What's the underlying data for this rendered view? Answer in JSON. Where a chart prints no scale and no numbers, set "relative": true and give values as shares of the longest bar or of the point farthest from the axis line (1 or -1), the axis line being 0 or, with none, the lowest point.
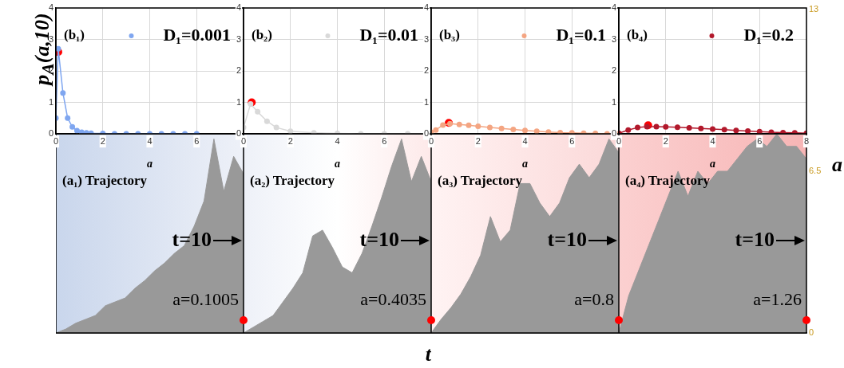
{
  "chart_data": [
    {
      "type": "line",
      "xlim": [
        0,
        8
      ],
      "ylim": [
        0,
        4
      ],
      "xticks": [
        0,
        2,
        4,
        6
      ],
      "yticks": [
        0,
        1,
        2,
        3,
        4
      ],
      "xlabel": "a",
      "ylabel": "p$_{A}$(a,10)",
      "grid": true,
      "legend": "top right",
      "marker": "circle",
      "annotations": [
        "(b₁)"
      ],
      "series": [
        {
          "name": "D₁=0.001",
          "color": "#7fa6f0",
          "x": [
            0,
            0.1,
            0.3,
            0.5,
            0.7,
            0.9,
            1.1,
            1.3,
            1.5,
            2,
            2.5,
            3,
            3.5,
            4,
            4.5,
            5,
            5.5,
            6
          ],
          "values": [
            0.5,
            2.7,
            1.3,
            0.5,
            0.22,
            0.1,
            0.05,
            0.03,
            0.02,
            0.01,
            0,
            0,
            0,
            0,
            0,
            0,
            0,
            0
          ]
        },
        {
          "type": "scatter",
          "color": "#ff0000",
          "x": [
            0.1
          ],
          "values": [
            2.6
          ]
        }
      ]
    },
    {
      "type": "line",
      "xlim": [
        0,
        8
      ],
      "ylim": [
        0,
        4
      ],
      "xticks": [
        0,
        2,
        4,
        6
      ],
      "yticks": [
        0,
        1,
        2,
        3,
        4
      ],
      "xlabel": "a",
      "grid": true,
      "legend": "top right",
      "marker": "circle",
      "annotations": [
        "(b₂)"
      ],
      "series": [
        {
          "name": "D₁=0.01",
          "color": "#d9d9d9",
          "x": [
            0,
            0.3,
            0.6,
            1,
            1.4,
            2,
            3,
            4,
            5,
            6,
            7,
            8
          ],
          "values": [
            0.2,
            0.95,
            0.7,
            0.4,
            0.2,
            0.08,
            0.03,
            0.01,
            0,
            0,
            0,
            0
          ]
        },
        {
          "type": "scatter",
          "color": "#ff0000",
          "x": [
            0.35
          ],
          "values": [
            1
          ]
        }
      ]
    },
    {
      "type": "line",
      "xlim": [
        0,
        8
      ],
      "ylim": [
        0,
        4
      ],
      "xticks": [
        0,
        2,
        4,
        6
      ],
      "yticks": [
        0,
        1,
        2,
        3,
        4
      ],
      "xlabel": "a",
      "grid": true,
      "legend": "top right",
      "marker": "circle",
      "annotations": [
        "(b₃)"
      ],
      "series": [
        {
          "name": "D₁=0.1",
          "color": "#f4a582",
          "x": [
            0,
            0.2,
            0.5,
            0.8,
            1.2,
            1.6,
            2,
            2.5,
            3,
            3.5,
            4,
            4.5,
            5,
            5.5,
            6,
            6.5,
            7,
            7.5,
            8
          ],
          "values": [
            0.05,
            0.12,
            0.28,
            0.32,
            0.3,
            0.27,
            0.24,
            0.2,
            0.17,
            0.14,
            0.11,
            0.08,
            0.06,
            0.04,
            0.03,
            0.02,
            0.01,
            0,
            0
          ]
        },
        {
          "type": "scatter",
          "color": "#ff0000",
          "x": [
            0.75
          ],
          "values": [
            0.35
          ]
        }
      ]
    },
    {
      "type": "line",
      "xlim": [
        0,
        8
      ],
      "ylim": [
        0,
        4
      ],
      "xticks": [
        0,
        2,
        4,
        6,
        8
      ],
      "yticks": [
        0,
        1,
        2,
        3,
        4
      ],
      "xlabel": "a",
      "grid": true,
      "legend": "top right",
      "marker": "circle",
      "annotations": [
        "(b₄)"
      ],
      "series": [
        {
          "name": "D₁=0.2",
          "color": "#b2182b",
          "x": [
            0,
            0.4,
            0.8,
            1.2,
            1.6,
            2,
            2.5,
            3,
            3.5,
            4,
            4.5,
            5,
            5.5,
            6,
            6.5,
            7,
            7.5,
            8
          ],
          "values": [
            0.02,
            0.12,
            0.2,
            0.23,
            0.23,
            0.22,
            0.21,
            0.19,
            0.17,
            0.15,
            0.13,
            0.11,
            0.09,
            0.07,
            0.05,
            0.04,
            0.03,
            0.02
          ]
        },
        {
          "type": "scatter",
          "color": "#ff0000",
          "x": [
            1.25
          ],
          "values": [
            0.27
          ]
        }
      ]
    },
    {
      "type": "area",
      "categories": [
        null,
        null,
        null,
        null,
        null,
        null,
        null,
        null,
        null,
        null,
        null,
        null,
        null,
        null,
        null,
        null,
        null,
        null,
        null,
        null
      ],
      "relative": true,
      "annotations": [
        "(a₁) Trajectory",
        "t=10",
        "a=0.1005"
      ],
      "series": [
        {
          "color": "#999999",
          "values": [
            0,
            0.02,
            0.05,
            0.07,
            0.09,
            0.14,
            0.16,
            0.18,
            0.23,
            0.27,
            0.32,
            0.36,
            0.41,
            0.45,
            0.55,
            0.68,
            1,
            0.73,
            0.91,
            0.82
          ]
        }
      ]
    },
    {
      "type": "area",
      "categories": [
        null,
        null,
        null,
        null,
        null,
        null,
        null,
        null,
        null,
        null,
        null,
        null,
        null,
        null,
        null,
        null,
        null,
        null,
        null,
        null
      ],
      "relative": true,
      "xlabel": "t",
      "annotations": [
        "(a₂) Trajectory",
        "t=10",
        "a=0.4035"
      ],
      "series": [
        {
          "color": "#999999",
          "values": [
            0,
            0.03,
            0.06,
            0.09,
            0.16,
            0.23,
            0.31,
            0.5,
            0.53,
            0.44,
            0.34,
            0.31,
            0.41,
            0.55,
            0.7,
            0.86,
            1,
            0.78,
            0.91,
            0.78
          ]
        }
      ]
    },
    {
      "type": "area",
      "categories": [
        null,
        null,
        null,
        null,
        null,
        null,
        null,
        null,
        null,
        null,
        null,
        null,
        null,
        null,
        null,
        null,
        null,
        null,
        null,
        null
      ],
      "relative": true,
      "annotations": [
        "(a₃) Trajectory",
        "t=10",
        "a=0.8"
      ],
      "series": [
        {
          "color": "#999999",
          "values": [
            0,
            0.07,
            0.13,
            0.2,
            0.29,
            0.4,
            0.6,
            0.47,
            0.53,
            0.77,
            0.77,
            0.67,
            0.6,
            0.67,
            0.8,
            0.87,
            0.8,
            0.87,
            1,
            0.93
          ]
        }
      ]
    },
    {
      "type": "area",
      "categories": [
        null,
        null,
        null,
        null,
        null,
        null,
        null,
        null,
        null,
        null,
        null,
        null,
        null,
        null,
        null,
        null,
        null,
        null,
        null,
        null
      ],
      "ylim": [
        0,
        13
      ],
      "yticks": [
        0,
        6.5,
        13
      ],
      "ylabel": "a",
      "annotations": [
        "(a₄) Trajectory",
        "t=10",
        "a=1.26"
      ],
      "series": [
        {
          "color": "#999999",
          "values": [
            0,
            1.5,
            2.5,
            3.5,
            4.5,
            5.5,
            6.5,
            5.5,
            6.5,
            6,
            6.5,
            6.5,
            7,
            7.5,
            7.8,
            7.5,
            8,
            7.5,
            7.5,
            7
          ]
        }
      ]
    }
  ]
}
